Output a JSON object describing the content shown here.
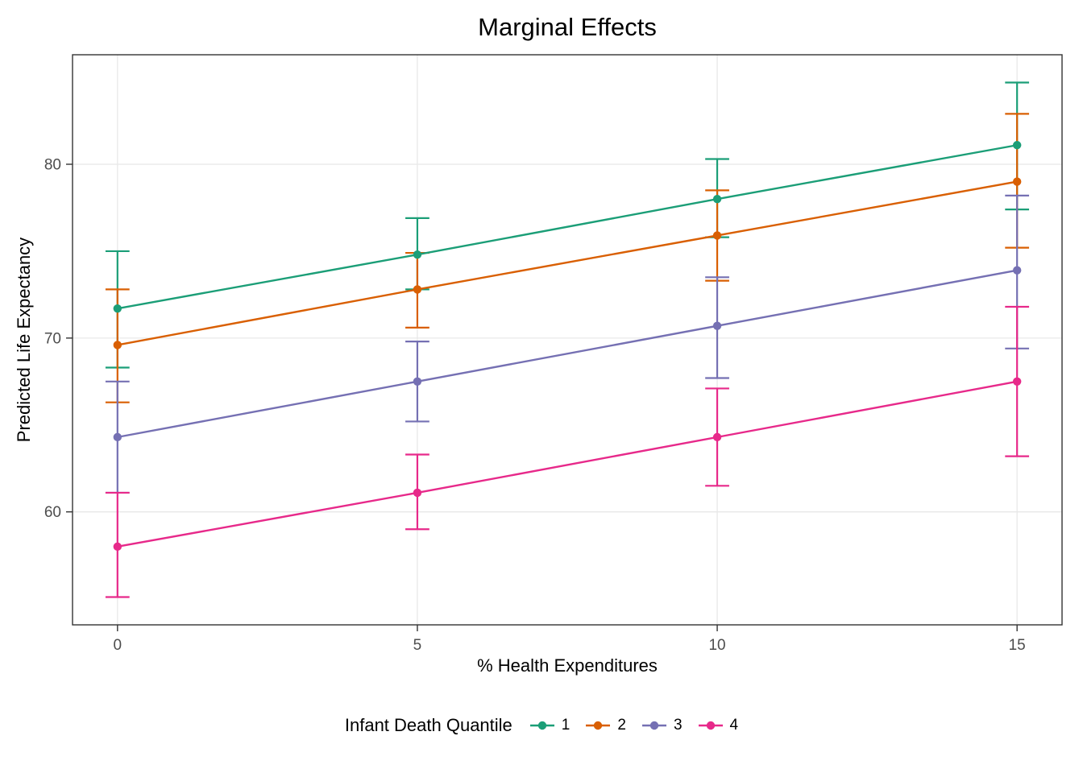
{
  "chart_data": {
    "type": "line",
    "title": "Marginal Effects",
    "xlabel": "% Health Expenditures",
    "ylabel": "Predicted Life Expectancy",
    "legend_title": "Infant Death Quantile",
    "legend_position": "bottom",
    "grid": true,
    "x": [
      0,
      5,
      10,
      15
    ],
    "x_ticks": [
      0,
      5,
      10,
      15
    ],
    "y_ticks": [
      60,
      70,
      80
    ],
    "xlim": [
      -0.75,
      15.75
    ],
    "ylim": [
      53.5,
      86.3
    ],
    "series": [
      {
        "name": "1",
        "color": "#1B9E77",
        "values": [
          71.7,
          74.8,
          78.0,
          81.1
        ],
        "ci_low": [
          68.3,
          72.8,
          75.8,
          77.4
        ],
        "ci_high": [
          75.0,
          76.9,
          80.3,
          84.7
        ]
      },
      {
        "name": "2",
        "color": "#D95F02",
        "values": [
          69.6,
          72.8,
          75.9,
          79.0
        ],
        "ci_low": [
          66.3,
          70.6,
          73.3,
          75.2
        ],
        "ci_high": [
          72.8,
          74.9,
          78.5,
          82.9
        ]
      },
      {
        "name": "3",
        "color": "#7570B3",
        "values": [
          64.3,
          67.5,
          70.7,
          73.9
        ],
        "ci_low": [
          61.1,
          65.2,
          67.7,
          69.4
        ],
        "ci_high": [
          67.5,
          69.8,
          73.5,
          78.2
        ]
      },
      {
        "name": "4",
        "color": "#E7298A",
        "values": [
          58.0,
          61.1,
          64.3,
          67.5
        ],
        "ci_low": [
          55.1,
          59.0,
          61.5,
          63.2
        ],
        "ci_high": [
          61.1,
          63.3,
          67.1,
          71.8
        ]
      }
    ]
  }
}
